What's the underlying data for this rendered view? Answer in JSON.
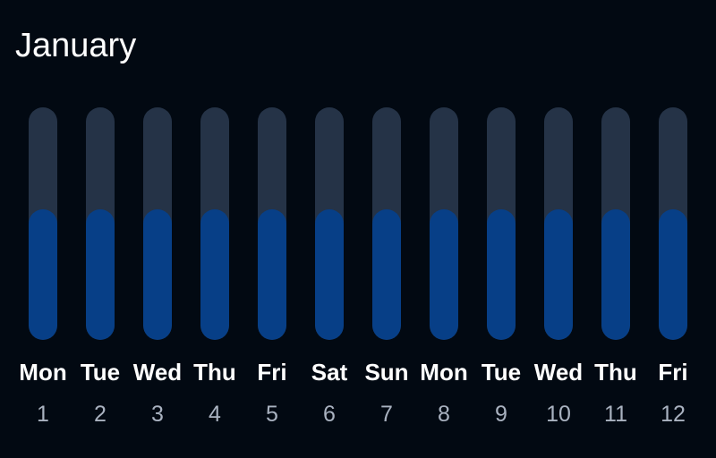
{
  "title": "January",
  "colors": {
    "background": "#020912",
    "track": "#253347",
    "fill": "#073f87",
    "day_label": "#ffffff",
    "date_label": "#a9b2c0"
  },
  "chart_data": {
    "type": "bar",
    "title": "January",
    "xlabel": "",
    "ylabel": "",
    "ylim": [
      0,
      1
    ],
    "grid": false,
    "categories": [
      "Mon",
      "Tue",
      "Wed",
      "Thu",
      "Fri",
      "Sat",
      "Sun",
      "Mon",
      "Tue",
      "Wed",
      "Thu",
      "Fri"
    ],
    "dates": [
      "1",
      "2",
      "3",
      "4",
      "5",
      "6",
      "7",
      "8",
      "9",
      "10",
      "11",
      "12"
    ],
    "values": [
      0.56,
      0.56,
      0.56,
      0.56,
      0.56,
      0.56,
      0.56,
      0.56,
      0.56,
      0.56,
      0.56,
      0.56
    ]
  }
}
